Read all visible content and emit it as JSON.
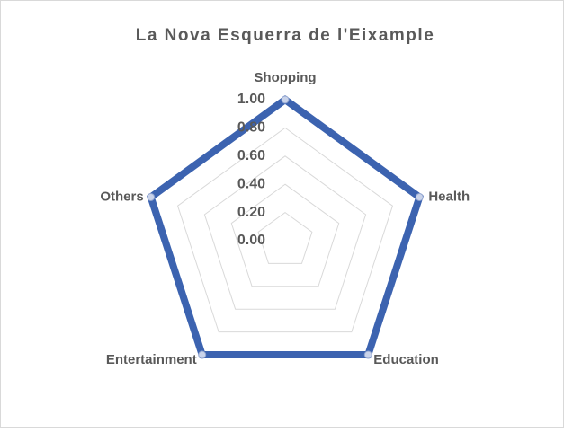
{
  "chart_data": {
    "type": "radar",
    "title": "La Nova Esquerra de l'Eixample",
    "categories": [
      "Shopping",
      "Health",
      "Education",
      "Entertainment",
      "Others"
    ],
    "series": [
      {
        "name": "La Nova Esquerra de l'Eixample",
        "color": "#3c63b0",
        "values": [
          1,
          1,
          1,
          1,
          1
        ]
      }
    ],
    "ylim": [
      0,
      1
    ],
    "yticks": [
      {
        "value": 0,
        "label": "0.00"
      },
      {
        "value": 0.2,
        "label": "0.20"
      },
      {
        "value": 0.4,
        "label": "0.40"
      },
      {
        "value": 0.6,
        "label": "0.60"
      },
      {
        "value": 0.8,
        "label": "0.80"
      },
      {
        "value": 1,
        "label": "1.00"
      }
    ],
    "grid": true
  }
}
